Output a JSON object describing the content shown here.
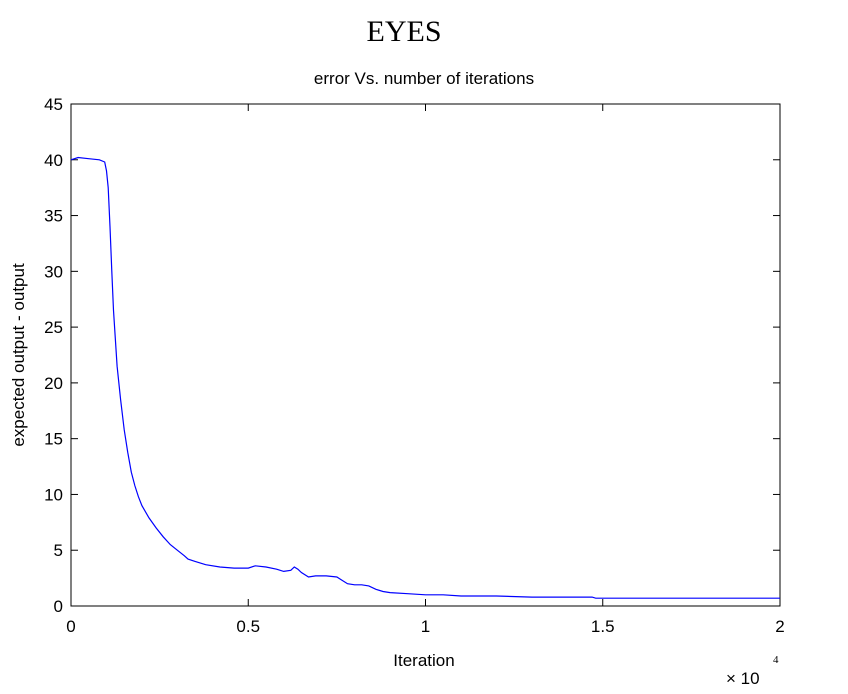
{
  "page_title": "EYES",
  "chart_data": {
    "type": "line",
    "title": "error Vs. number of iterations",
    "xlabel": "Iteration",
    "ylabel": "expected output - output",
    "x_multiplier_base": "× 10",
    "x_multiplier_exp": "4",
    "xlim": [
      0,
      2
    ],
    "ylim": [
      0,
      45
    ],
    "xticks": [
      "0",
      "0.5",
      "1",
      "1.5",
      "2"
    ],
    "yticks": [
      "0",
      "5",
      "10",
      "15",
      "20",
      "25",
      "30",
      "35",
      "40",
      "45"
    ],
    "xtick_values": [
      0,
      0.5,
      1,
      1.5,
      2
    ],
    "ytick_values": [
      0,
      5,
      10,
      15,
      20,
      25,
      30,
      35,
      40,
      45
    ],
    "line_color": "#0000ff",
    "series": [
      {
        "x": [
          0,
          0.02,
          0.05,
          0.08,
          0.095,
          0.1,
          0.105,
          0.11,
          0.115,
          0.12,
          0.125,
          0.13,
          0.14,
          0.15,
          0.16,
          0.17,
          0.18,
          0.19,
          0.2,
          0.22,
          0.24,
          0.26,
          0.28,
          0.3,
          0.32,
          0.33,
          0.35,
          0.38,
          0.42,
          0.46,
          0.5,
          0.52,
          0.55,
          0.58,
          0.6,
          0.62,
          0.63,
          0.64,
          0.65,
          0.67,
          0.69,
          0.72,
          0.75,
          0.76,
          0.78,
          0.8,
          0.82,
          0.84,
          0.86,
          0.88,
          0.9,
          0.95,
          1.0,
          1.05,
          1.1,
          1.2,
          1.3,
          1.4,
          1.47,
          1.48,
          1.6,
          1.7,
          1.8,
          1.9,
          2.0
        ],
        "y": [
          40,
          40.2,
          40.1,
          40.0,
          39.8,
          39.0,
          37.5,
          34.0,
          30.0,
          26.5,
          24.0,
          21.5,
          18.5,
          15.8,
          13.8,
          12.0,
          10.8,
          9.8,
          9.0,
          7.9,
          7.0,
          6.2,
          5.5,
          5.0,
          4.5,
          4.2,
          4.0,
          3.7,
          3.5,
          3.4,
          3.4,
          3.6,
          3.5,
          3.3,
          3.1,
          3.2,
          3.5,
          3.3,
          3.0,
          2.6,
          2.7,
          2.7,
          2.6,
          2.4,
          2.0,
          1.9,
          1.9,
          1.8,
          1.5,
          1.3,
          1.2,
          1.1,
          1.0,
          1.0,
          0.9,
          0.9,
          0.8,
          0.8,
          0.8,
          0.7,
          0.7,
          0.7,
          0.7,
          0.7,
          0.7
        ]
      }
    ]
  }
}
